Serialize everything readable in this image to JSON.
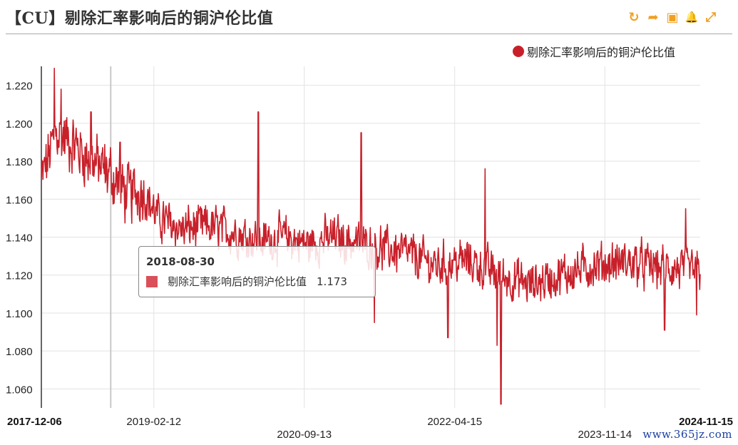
{
  "header": {
    "title": "【CU】剔除汇率影响后的铜沪伦比值",
    "toolbar": [
      {
        "name": "refresh-icon",
        "glyph": "↻"
      },
      {
        "name": "share-icon",
        "glyph": "➦"
      },
      {
        "name": "save-image-icon",
        "glyph": "▣"
      },
      {
        "name": "alert-bell-icon",
        "glyph": "🔔"
      },
      {
        "name": "fullscreen-icon",
        "glyph": "⤢"
      }
    ]
  },
  "tooltip": {
    "date": "2018-08-30",
    "series_name": "剔除汇率影响后的铜沪伦比值",
    "value": "1.173"
  },
  "watermark": "www.365jz.com",
  "chart_data": {
    "type": "line",
    "title": "【CU】剔除汇率影响后的铜沪伦比值",
    "series": [
      {
        "name": "剔除汇率影响后的铜沪伦比值",
        "color": "#c8202a"
      }
    ],
    "legend_position": "top-right",
    "grid": true,
    "ylim": [
      1.05,
      1.23
    ],
    "yticks": [
      "1.060",
      "1.080",
      "1.100",
      "1.120",
      "1.140",
      "1.160",
      "1.180",
      "1.200",
      "1.220"
    ],
    "xlim": [
      "2017-12-06",
      "2024-11-15"
    ],
    "xticks": [
      {
        "date": "2017-12-06",
        "row": 0,
        "bold": true
      },
      {
        "date": "2019-02-12",
        "row": 0,
        "bold": false
      },
      {
        "date": "2020-09-13",
        "row": 1,
        "bold": false
      },
      {
        "date": "2022-04-15",
        "row": 0,
        "bold": false
      },
      {
        "date": "2023-11-14",
        "row": 1,
        "bold": false
      },
      {
        "date": "2024-11-15",
        "row": 0,
        "bold": true
      }
    ],
    "anchors": [
      [
        "2017-12-06",
        1.17
      ],
      [
        "2018-02-01",
        1.195
      ],
      [
        "2018-04-01",
        1.19
      ],
      [
        "2018-06-01",
        1.182
      ],
      [
        "2018-08-30",
        1.173
      ],
      [
        "2018-11-01",
        1.162
      ],
      [
        "2019-01-01",
        1.165
      ],
      [
        "2019-03-01",
        1.15
      ],
      [
        "2019-06-01",
        1.144
      ],
      [
        "2019-09-01",
        1.146
      ],
      [
        "2020-01-01",
        1.142
      ],
      [
        "2020-04-01",
        1.138
      ],
      [
        "2020-07-01",
        1.14
      ],
      [
        "2020-10-01",
        1.136
      ],
      [
        "2021-01-01",
        1.14
      ],
      [
        "2021-06-01",
        1.135
      ],
      [
        "2021-10-01",
        1.132
      ],
      [
        "2022-02-01",
        1.125
      ],
      [
        "2022-06-01",
        1.128
      ],
      [
        "2022-10-01",
        1.12
      ],
      [
        "2023-02-01",
        1.115
      ],
      [
        "2023-06-01",
        1.12
      ],
      [
        "2023-10-01",
        1.125
      ],
      [
        "2024-02-01",
        1.127
      ],
      [
        "2024-06-01",
        1.124
      ],
      [
        "2024-11-15",
        1.122
      ]
    ],
    "extremes": [
      [
        "2018-01-25",
        1.229
      ],
      [
        "2018-02-20",
        1.218
      ],
      [
        "2018-06-15",
        1.206
      ],
      [
        "2018-10-05",
        1.19
      ],
      [
        "2020-03-20",
        1.206
      ],
      [
        "2021-04-20",
        1.195
      ],
      [
        "2021-06-10",
        1.095
      ],
      [
        "2022-08-10",
        1.176
      ],
      [
        "2022-03-20",
        1.087
      ],
      [
        "2022-09-25",
        1.083
      ],
      [
        "2022-10-10",
        1.052
      ],
      [
        "2024-09-20",
        1.155
      ],
      [
        "2024-07-01",
        1.091
      ],
      [
        "2024-11-01",
        1.099
      ]
    ],
    "noise_amplitude": 0.009,
    "mark_date": "2018-08-30"
  }
}
